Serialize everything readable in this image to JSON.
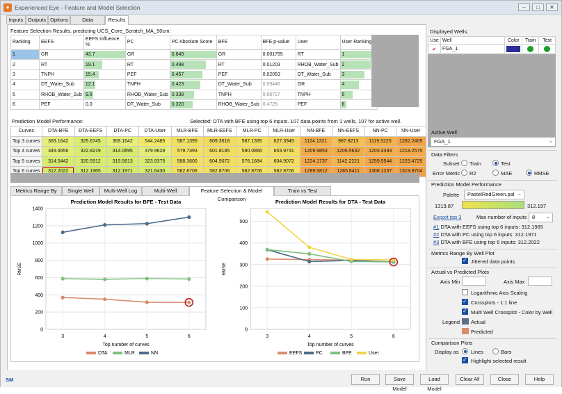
{
  "window": {
    "title": "Experienced Eye - Feature and Model Selection"
  },
  "tabs": [
    "Inputs",
    "Outputs",
    "Options",
    "Data Summary",
    "Results"
  ],
  "feature_selection": {
    "title": "Feature Selection Results, predicting UCS_Core_Scratch_MA_50cm:",
    "headers": [
      "Ranking",
      "EEFS",
      "EEFS Influence %",
      "PC",
      "PC Absolute Score",
      "BFE",
      "BFE p-value",
      "User",
      "User Ranking"
    ],
    "rows": [
      {
        "rank": "1",
        "eefs": "GR",
        "infl": "43.7",
        "pc": "GR",
        "pcs": "0.649",
        "bfe": "GR",
        "pv": "0.001795",
        "user": "RT",
        "ur": "1"
      },
      {
        "rank": "2",
        "eefs": "RT",
        "infl": "19.1",
        "pc": "RT",
        "pcs": "0.498",
        "bfe": "RT",
        "pv": "0.01203",
        "user": "RHOB_Water_Sub",
        "ur": "2"
      },
      {
        "rank": "3",
        "eefs": "TNPH",
        "infl": "15.4",
        "pc": "PEF",
        "pcs": "0.457",
        "bfe": "PEF",
        "pv": "0.02053",
        "user": "DT_Water_Sub",
        "ur": "3"
      },
      {
        "rank": "4",
        "eefs": "DT_Water_Sub",
        "infl": "12.1",
        "pc": "TNPH",
        "pcs": "0.423",
        "bfe": "DT_Water_Sub",
        "pv": "0.09446",
        "user": "GR",
        "ur": "4"
      },
      {
        "rank": "5",
        "eefs": "RHOB_Water_Sub",
        "infl": "9.6",
        "pc": "RHOB_Water_Sub",
        "pcs": "0.338",
        "bfe": "TNPH",
        "pv": "0.06727",
        "user": "TNPH",
        "ur": "5"
      },
      {
        "rank": "6",
        "eefs": "PEF",
        "infl": "0.0",
        "pc": "DT_Water_Sub",
        "pcs": "0.320",
        "bfe": "RHOB_Water_Sub",
        "pv": "0.4725",
        "user": "PEF",
        "ur": "6"
      }
    ]
  },
  "performance": {
    "title": "Prediction Model Performance:",
    "selected_text": "Selected: DTA with BFE using top 6 inputs.  107 data points from 1 wells, 107 for active well.",
    "headers": [
      "Curves",
      "DTA-BFE",
      "DTA-EEFS",
      "DTA-PC",
      "DTA-User",
      "MLR-BFE",
      "MLR-EEFS",
      "MLR-PC",
      "MLR-User",
      "NN-BFE",
      "NN-EEFS",
      "NN-PC",
      "NN-User"
    ],
    "rows": [
      [
        "Top 3 curves",
        "369.1642",
        "325.6745",
        "369.1642",
        "544.2485",
        "587.1395",
        "609.3618",
        "587.1395",
        "627.3949",
        "1124.1321",
        "987.8213",
        "1119.5225",
        "1282.2409"
      ],
      [
        "Top 4 curves",
        "349.6656",
        "322.8219",
        "314.0695",
        "379.9628",
        "579.7393",
        "601.8185",
        "590.0866",
        "603.9731",
        "1209.9853",
        "1206.5632",
        "1203.4393",
        "1218.2575"
      ],
      [
        "Top 5 curves",
        "314.5442",
        "320.5912",
        "319.5613",
        "323.9375",
        "588.3600",
        "604.9072",
        "576.1684",
        "604.9072",
        "1224.1737",
        "1142.2221",
        "1259.5544",
        "1229.4725"
      ],
      [
        "Top 6 curves",
        "312.2022",
        "312.1965",
        "312.1971",
        "321.6430",
        "582.8706",
        "582.8706",
        "582.8706",
        "582.8706",
        "1299.5812",
        "1285.8411",
        "1308.1237",
        "1319.8704"
      ]
    ],
    "row_colors": [
      [
        "#f4f4f4",
        "#e7ef7a",
        "#dcec72",
        "#e7ef7a",
        "#f2ea66",
        "#f3df61",
        "#f3da60",
        "#f3df61",
        "#f3d65f",
        "#f4b04b",
        "#f4bf53",
        "#f4b14b",
        "#f3a546"
      ],
      [
        "#f4f4f4",
        "#e3ee78",
        "#d9ec70",
        "#d6eb6f",
        "#e4ee78",
        "#f3e162",
        "#f3dd61",
        "#f3df61",
        "#f3dd61",
        "#f3ab49",
        "#f3ab49",
        "#f3ac49",
        "#f3aa48"
      ],
      [
        "#f4f4f4",
        "#d7eb6f",
        "#d9ec70",
        "#d8eb70",
        "#d9ec71",
        "#f3df61",
        "#f3dc60",
        "#f3e062",
        "#f3dc60",
        "#f3a948",
        "#f4b34d",
        "#f3a547",
        "#f3a847"
      ],
      [
        "#f4f4f4",
        "#d4ea6e",
        "#d4ea6e",
        "#d4ea6e",
        "#d7eb6f",
        "#f3df61",
        "#f3df61",
        "#f3df61",
        "#f3df61",
        "#f3a446",
        "#f3a447",
        "#f3a346",
        "#f3a145"
      ]
    ]
  },
  "bottom_tabs": [
    "Metrics Range By Well",
    "Single Well Plots",
    "Multi-Well Log Plot",
    "Multi-Well Crossplot",
    "Feature Selection & Model Comparison",
    "Train vs Test Comparison"
  ],
  "chart_data": [
    {
      "type": "line",
      "title": "Prediction Model Results for BFE - Test Data",
      "xlabel": "Top number of curves",
      "ylabel": "RMSE",
      "x": [
        3,
        4,
        5,
        6
      ],
      "xlim": [
        2.6,
        6.4
      ],
      "ylim": [
        0,
        1400
      ],
      "yticks": [
        0,
        200,
        400,
        600,
        800,
        1000,
        1200,
        1400
      ],
      "series": [
        {
          "name": "DTA",
          "color": "#d98b6a",
          "values": [
            369.16,
            349.67,
            314.54,
            312.2
          ]
        },
        {
          "name": "MLR",
          "color": "#7fbf7f",
          "values": [
            587.14,
            579.74,
            588.36,
            582.87
          ]
        },
        {
          "name": "NN",
          "color": "#4a6b8a",
          "values": [
            1124.13,
            1209.99,
            1224.17,
            1299.58
          ]
        }
      ],
      "highlight": {
        "x": 6,
        "y": 312.2
      }
    },
    {
      "type": "line",
      "title": "Prediction Model Results for DTA - Test Data",
      "xlabel": "Top number of curves",
      "ylabel": "RMSE",
      "x": [
        3,
        4,
        5,
        6
      ],
      "xlim": [
        2.6,
        6.4
      ],
      "ylim": [
        0,
        560
      ],
      "yticks": [
        0,
        100,
        200,
        300,
        400,
        500
      ],
      "series": [
        {
          "name": "EEFS",
          "color": "#d98b6a",
          "values": [
            325.67,
            322.82,
            320.59,
            312.2
          ]
        },
        {
          "name": "PC",
          "color": "#4a6b8a",
          "values": [
            369.16,
            314.07,
            319.56,
            312.2
          ]
        },
        {
          "name": "BFE",
          "color": "#7fbf7f",
          "values": [
            369.16,
            349.67,
            314.54,
            312.2
          ]
        },
        {
          "name": "User",
          "color": "#f0d44a",
          "values": [
            544.25,
            379.96,
            323.94,
            321.64
          ]
        }
      ],
      "highlight": {
        "x": 6,
        "y": 312.2
      }
    }
  ],
  "right": {
    "displayed_wells_label": "Displayed Wells:",
    "well_headers": [
      "Use",
      "Well",
      "Color",
      "Train",
      "Test"
    ],
    "well": {
      "check": "✔",
      "name": "FGA_1",
      "color": "#2d2d9a"
    },
    "active_well_label": "Active Well",
    "active_well": "FGA_1",
    "data_filters_label": "Data Filters",
    "subset_label": "Subset",
    "subset_train": "Train",
    "subset_test": "Test",
    "error_metric_label": "Error Metric",
    "em_r2": "R2",
    "em_mae": "MAE",
    "em_rmse": "RMSE",
    "pmp_label": "Prediction Model Performance",
    "palette_label": "Palette",
    "palette": "PastelRedGreen.pal",
    "grad_max": "1319.87",
    "grad_min": "312.197",
    "export_link": "Export top 3",
    "max_inputs_label": "Max number of inputs",
    "max_inputs": "8",
    "top_items": [
      {
        "num": "#1",
        "text": "DTA with EEFS using top 6 inputs: 312.1965"
      },
      {
        "num": "#2",
        "text": "DTA with PC using top 6 inputs: 312.1971"
      },
      {
        "num": "#3",
        "text": "DTA with BFE using top 6 inputs: 312.2022"
      }
    ],
    "metrics_plot_label": "Metrics Range By Well Plot",
    "jittered": "Jittered data points",
    "avp_label": "Actual vs Predicted Plots",
    "axis_min": "Axis Min",
    "axis_max": "Axis Max",
    "log_axis": "Logarithmic Axis Scaling",
    "crossplots": "Crossplots - 1:1 line",
    "multi_well": "Multi Well Crossplot - Color by Well",
    "legend_label": "Legend",
    "legend_actual": "Actual",
    "legend_predicted": "Predicted",
    "actual_color": "#5a6f86",
    "predicted_color": "#d98b6a",
    "comparison_label": "Comparison Plots",
    "display_as": "Display as",
    "lines": "Lines",
    "bars": "Bars",
    "highlight_sel": "Highlight selected result"
  },
  "buttons": [
    "Run",
    "Save Model",
    "Load Model",
    "Clear All",
    "Close",
    "Help"
  ],
  "footer_logo": "SM"
}
